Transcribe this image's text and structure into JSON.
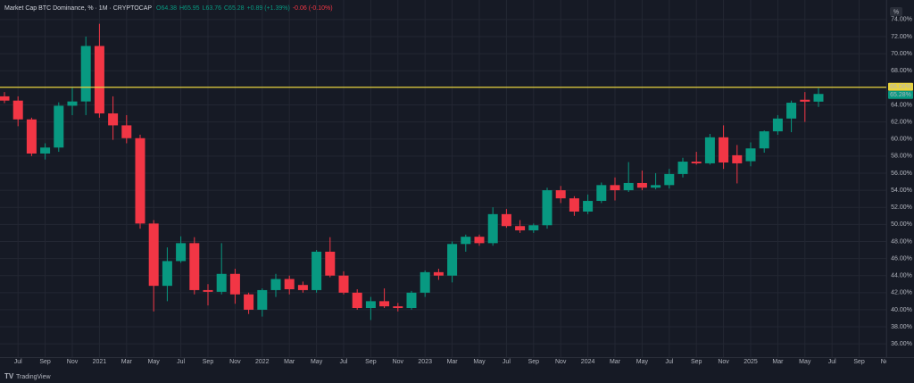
{
  "chart_data": {
    "type": "candlestick",
    "title": "Market Cap BTC Dominance, % · 1M · CRYPTOCAP",
    "header_values": [
      {
        "text": "O64.38",
        "color": "#089981"
      },
      {
        "text": "H65.95",
        "color": "#089981"
      },
      {
        "text": "L63.76",
        "color": "#089981"
      },
      {
        "text": "C65.28",
        "color": "#089981"
      },
      {
        "text": "+0.89 (+1.39%)",
        "color": "#089981"
      },
      {
        "text": "-0.06 (-0.10%)",
        "color": "#f23645"
      }
    ],
    "scale_button": "%",
    "brand": "TradingView",
    "categories": [
      null,
      "Jul",
      null,
      "Sep",
      null,
      "Nov",
      null,
      "2021",
      null,
      "Mar",
      null,
      "May",
      null,
      "Jul",
      null,
      "Sep",
      null,
      "Nov",
      null,
      "2022",
      null,
      "Mar",
      null,
      "May",
      null,
      "Jul",
      null,
      "Sep",
      null,
      "Nov",
      null,
      "2023",
      null,
      "Mar",
      null,
      "May",
      null,
      "Jul",
      null,
      "Sep",
      null,
      "Nov",
      null,
      "2024",
      null,
      "Mar",
      null,
      "May",
      null,
      "Jul",
      null,
      "Sep",
      null,
      "Nov",
      null,
      "2025",
      null,
      "Mar",
      null,
      "May",
      null,
      "Jul",
      null,
      "Sep",
      null,
      "Nov"
    ],
    "open": [
      65.0,
      64.5,
      62.3,
      58.3,
      59.0,
      63.9,
      64.4,
      70.9,
      63.0,
      61.6,
      60.1,
      50.1,
      42.8,
      45.7,
      47.8,
      42.3,
      42.1,
      44.2,
      41.8,
      40.0,
      42.3,
      43.6,
      42.9,
      42.3,
      46.8,
      44.0,
      42.0,
      40.2,
      41.0,
      40.4,
      40.2,
      42.0,
      44.4,
      44.0,
      47.7,
      48.55,
      47.8,
      51.2,
      49.8,
      49.3,
      49.9,
      54.0,
      53.05,
      51.5,
      52.75,
      54.6,
      54.0,
      54.85,
      54.3,
      54.6,
      55.9,
      57.35,
      57.15,
      60.2,
      58.1,
      57.4,
      58.9,
      60.9,
      62.4,
      64.6,
      64.38,
      null,
      null,
      null,
      null,
      null
    ],
    "high": [
      65.5,
      65.0,
      62.5,
      59.5,
      64.3,
      66.0,
      72.0,
      73.5,
      65.0,
      62.8,
      60.5,
      50.5,
      47.3,
      48.6,
      48.5,
      43.0,
      47.8,
      44.8,
      42.0,
      42.5,
      44.2,
      44.0,
      43.3,
      47.0,
      48.5,
      44.5,
      42.4,
      41.5,
      42.5,
      40.8,
      42.2,
      44.6,
      44.8,
      48.0,
      48.8,
      48.8,
      52.0,
      51.8,
      50.5,
      50.1,
      54.3,
      54.5,
      53.3,
      53.5,
      54.9,
      55.5,
      57.3,
      56.3,
      56.0,
      56.5,
      57.8,
      58.5,
      60.6,
      61.6,
      59.3,
      59.6,
      61.0,
      62.8,
      64.5,
      65.5,
      65.95,
      null,
      null,
      null,
      null,
      null
    ],
    "low": [
      64.2,
      61.5,
      58.0,
      57.6,
      58.5,
      62.8,
      62.8,
      62.5,
      59.9,
      59.5,
      49.5,
      39.8,
      41.0,
      45.5,
      41.8,
      40.5,
      41.8,
      40.7,
      39.5,
      39.2,
      41.5,
      41.8,
      42.0,
      42.0,
      43.8,
      41.8,
      40.0,
      38.8,
      40.2,
      39.8,
      40.0,
      41.5,
      43.5,
      43.2,
      46.8,
      47.5,
      47.5,
      49.6,
      49.0,
      49.0,
      49.5,
      52.5,
      51.0,
      51.2,
      52.5,
      52.8,
      53.8,
      54.0,
      54.1,
      54.2,
      55.5,
      57.0,
      57.0,
      56.5,
      54.8,
      56.8,
      58.4,
      60.5,
      60.8,
      62.0,
      63.76,
      null,
      null,
      null,
      null,
      null
    ],
    "close": [
      64.5,
      62.3,
      58.3,
      59.0,
      63.9,
      64.4,
      70.9,
      63.0,
      61.6,
      60.1,
      50.1,
      42.8,
      45.7,
      47.8,
      42.3,
      42.1,
      44.2,
      41.8,
      40.0,
      42.3,
      43.6,
      42.4,
      42.3,
      46.8,
      44.0,
      42.0,
      40.2,
      41.0,
      40.4,
      40.2,
      42.0,
      44.4,
      44.0,
      47.7,
      48.55,
      47.8,
      51.2,
      49.8,
      49.3,
      49.9,
      54.0,
      53.05,
      51.5,
      52.75,
      54.6,
      54.0,
      54.85,
      54.3,
      54.6,
      55.9,
      57.35,
      57.15,
      60.2,
      57.25,
      57.15,
      58.9,
      60.9,
      62.4,
      64.25,
      64.38,
      65.28,
      null,
      null,
      null,
      null,
      null
    ],
    "up_color": "#089981",
    "down_color": "#f23645",
    "ylim": [
      34.45,
      75.45
    ],
    "yticks": [
      {
        "value": 36,
        "label": "36.00%"
      },
      {
        "value": 38,
        "label": "38.00%"
      },
      {
        "value": 40,
        "label": "40.00%"
      },
      {
        "value": 42,
        "label": "42.00%"
      },
      {
        "value": 44,
        "label": "44.00%"
      },
      {
        "value": 46,
        "label": "46.00%"
      },
      {
        "value": 48,
        "label": "48.00%"
      },
      {
        "value": 50,
        "label": "50.00%"
      },
      {
        "value": 52,
        "label": "52.00%"
      },
      {
        "value": 54,
        "label": "54.00%"
      },
      {
        "value": 56,
        "label": "56.00%"
      },
      {
        "value": 58,
        "label": "58.00%"
      },
      {
        "value": 60,
        "label": "60.00%"
      },
      {
        "value": 62,
        "label": "62.00%"
      },
      {
        "value": 64,
        "label": "64.00%"
      },
      {
        "value": 68,
        "label": "68.00%"
      },
      {
        "value": 70,
        "label": "70.00%"
      },
      {
        "value": 72,
        "label": "72.00%"
      },
      {
        "value": 74,
        "label": "74.00%"
      }
    ],
    "grid": true,
    "hline": {
      "value": 66.06,
      "label": "66.06%",
      "color": "#e8d33f"
    },
    "last_price": {
      "value": 65.28,
      "label": "65.28%"
    }
  }
}
